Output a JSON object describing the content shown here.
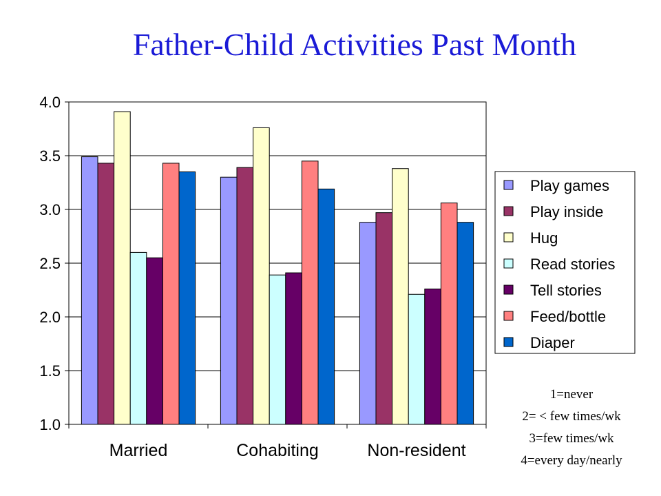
{
  "title": "Father-Child Activities Past Month",
  "chart_data": {
    "type": "bar",
    "categories": [
      "Married",
      "Cohabiting",
      "Non-resident"
    ],
    "ylim": [
      1.0,
      4.0
    ],
    "yticks": [
      "1.0",
      "1.5",
      "2.0",
      "2.5",
      "3.0",
      "3.5",
      "4.0"
    ],
    "grid": true,
    "legend_position": "right",
    "series": [
      {
        "name": "Play games",
        "color": "#9999ff",
        "values": [
          3.49,
          3.3,
          2.88
        ]
      },
      {
        "name": "Play inside",
        "color": "#993366",
        "values": [
          3.43,
          3.39,
          2.97
        ]
      },
      {
        "name": "Hug",
        "color": "#ffffcc",
        "values": [
          3.91,
          3.76,
          3.38
        ]
      },
      {
        "name": "Read stories",
        "color": "#ccffff",
        "values": [
          2.6,
          2.39,
          2.21
        ]
      },
      {
        "name": "Tell stories",
        "color": "#660066",
        "values": [
          2.55,
          2.41,
          2.26
        ]
      },
      {
        "name": "Feed/bottle",
        "color": "#ff8080",
        "values": [
          3.43,
          3.45,
          3.06
        ]
      },
      {
        "name": "Diaper",
        "color": "#0066cc",
        "values": [
          3.35,
          3.19,
          2.88
        ]
      }
    ]
  },
  "notes": [
    "1=never",
    "2= < few times/wk",
    "3=few times/wk",
    "4=every day/nearly"
  ]
}
